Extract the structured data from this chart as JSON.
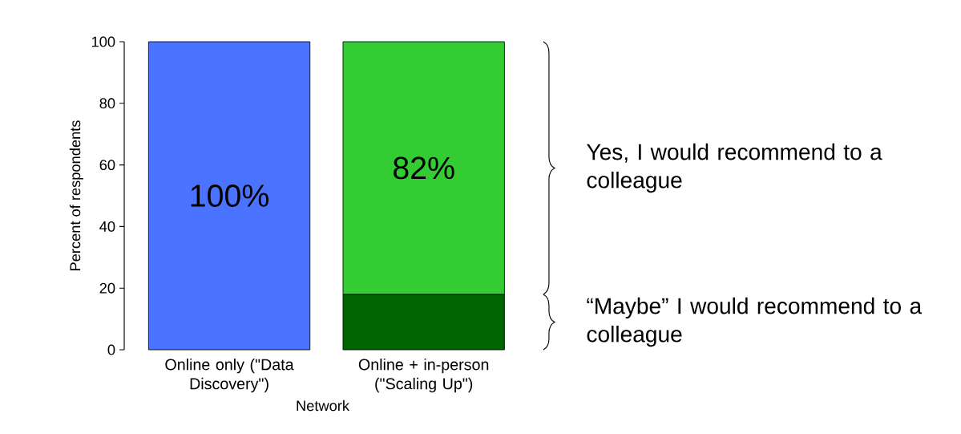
{
  "chart_data": {
    "type": "bar",
    "stacked": true,
    "xlabel": "Network",
    "ylabel": "Percent of respondents",
    "categories": [
      "Online only (\"Data Discovery\")",
      "Online + in-person (\"Scaling Up\")"
    ],
    "series": [
      {
        "colors": [
          "#4a74ff",
          "#006400"
        ],
        "values": [
          100,
          18
        ],
        "value_labels": [
          "100%",
          null
        ]
      },
      {
        "colors": [
          "#33cc33",
          "#33cc33"
        ],
        "values": [
          null,
          82
        ],
        "value_labels": [
          null,
          "82%"
        ]
      }
    ],
    "ylim": [
      0,
      100
    ],
    "yticks": [
      0,
      20,
      40,
      60,
      80,
      100
    ],
    "grid": false,
    "annotations": [
      "Yes, I would recommend to a colleague",
      "“Maybe” I would recommend to a colleague"
    ]
  }
}
